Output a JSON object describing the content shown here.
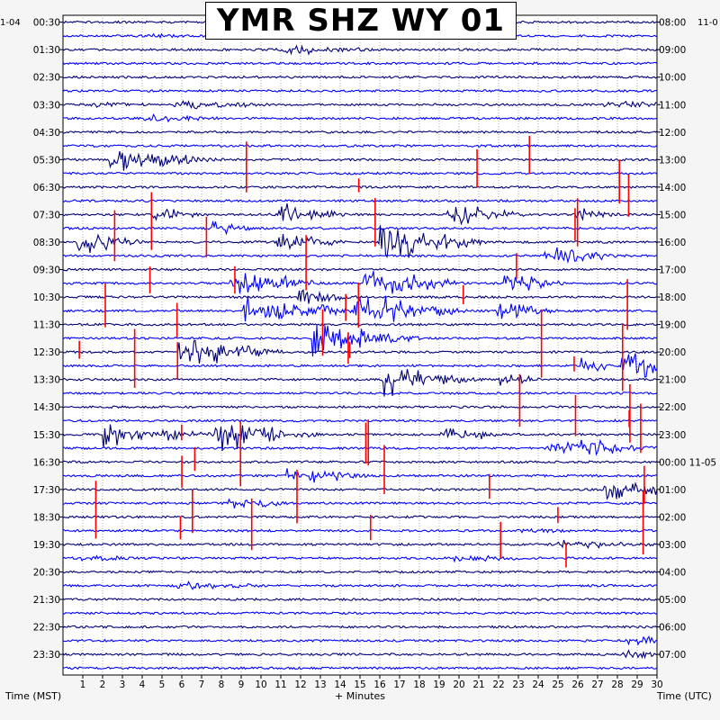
{
  "chart_data": {
    "type": "helicorder",
    "title": "YMR SHZ WY 01",
    "left_date": "1-04",
    "right_date": "11-0",
    "left_ticks": [
      "00:30",
      "01:30",
      "02:30",
      "03:30",
      "04:30",
      "05:30",
      "06:30",
      "07:30",
      "08:30",
      "09:30",
      "10:30",
      "11:30",
      "12:30",
      "13:30",
      "14:30",
      "15:30",
      "16:30",
      "17:30",
      "18:30",
      "19:30",
      "20:30",
      "21:30",
      "22:30",
      "23:30"
    ],
    "right_ticks": [
      "08:00",
      "09:00",
      "10:00",
      "11:00",
      "12:00",
      "13:00",
      "14:00",
      "15:00",
      "16:00",
      "17:00",
      "18:00",
      "19:00",
      "20:00",
      "21:00",
      "22:00",
      "23:00",
      "00:00 11-05",
      "01:00",
      "02:00",
      "03:00",
      "04:00",
      "05:00",
      "06:00",
      "07:00"
    ],
    "x_ticks": [
      "1",
      "2",
      "3",
      "4",
      "5",
      "6",
      "7",
      "8",
      "9",
      "10",
      "11",
      "12",
      "13",
      "14",
      "15",
      "16",
      "17",
      "18",
      "19",
      "20",
      "21",
      "22",
      "23",
      "24",
      "25",
      "26",
      "27",
      "28",
      "29",
      "30"
    ],
    "xlim": [
      0,
      30
    ],
    "xlabel": "+ Minutes",
    "left_axis_label": "Time (MST)",
    "right_axis_label": "Time (UTC)",
    "grid": true,
    "trace_colors": [
      "#00007a",
      "#0000ff"
    ],
    "event_color": "#ff0000",
    "trace_lines": 48
  }
}
